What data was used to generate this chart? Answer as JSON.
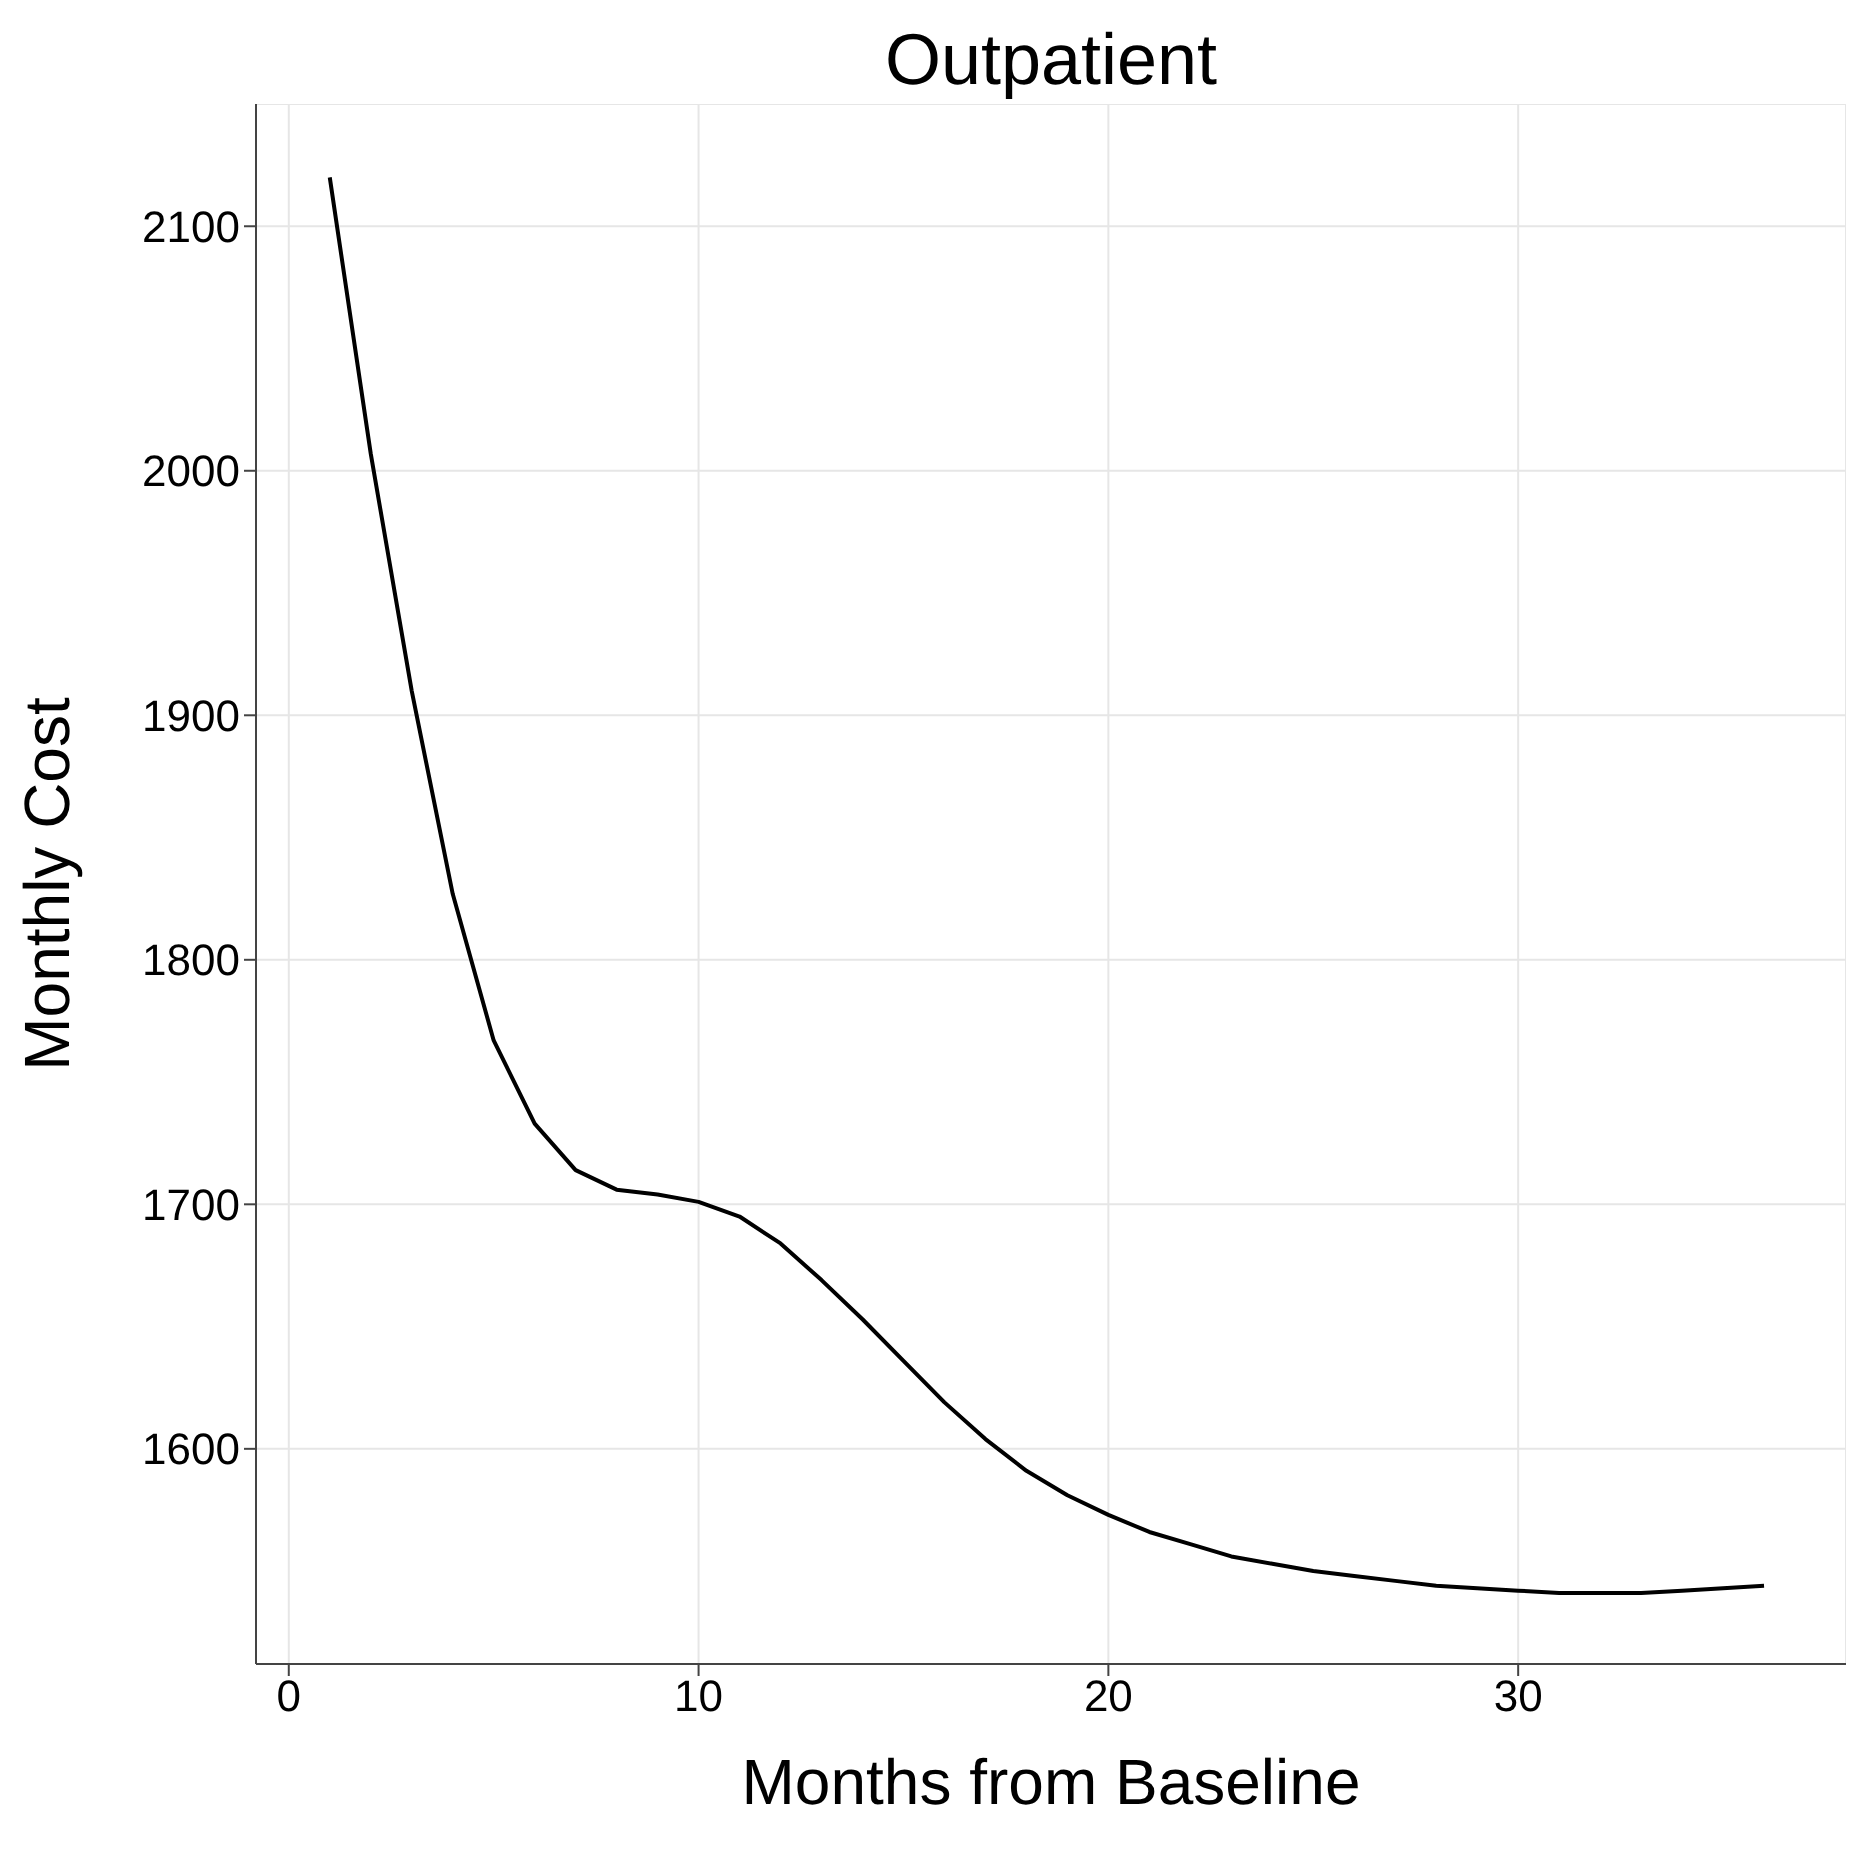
{
  "chart_data": {
    "type": "line",
    "title": "Outpatient",
    "xlabel": "Months from Baseline",
    "ylabel": "Monthly Cost",
    "x": [
      1,
      2,
      3,
      4,
      5,
      6,
      7,
      8,
      9,
      10,
      11,
      12,
      13,
      14,
      15,
      16,
      17,
      18,
      19,
      20,
      21,
      22,
      23,
      24,
      25,
      26,
      27,
      28,
      29,
      30,
      31,
      32,
      33,
      34,
      35,
      36
    ],
    "series": [
      {
        "color": "#000000",
        "values": [
          2120,
          2007,
          1910,
          1827,
          1767,
          1733,
          1714,
          1706,
          1704,
          1701,
          1695,
          1684,
          1669,
          1653,
          1636,
          1619,
          1604,
          1591,
          1581,
          1573,
          1566,
          1561,
          1556,
          1553,
          1550,
          1548,
          1546,
          1544,
          1543,
          1542,
          1541,
          1541,
          1541,
          1542,
          1543,
          1544
        ]
      }
    ],
    "xlim": [
      -0.8,
      38
    ],
    "ylim": [
      1512,
      2150
    ],
    "xticks": [
      0,
      10,
      20,
      30
    ],
    "yticks": [
      1600,
      1700,
      1800,
      1900,
      2000,
      2100
    ],
    "grid": true,
    "marker": "none",
    "line_style": "solid"
  }
}
